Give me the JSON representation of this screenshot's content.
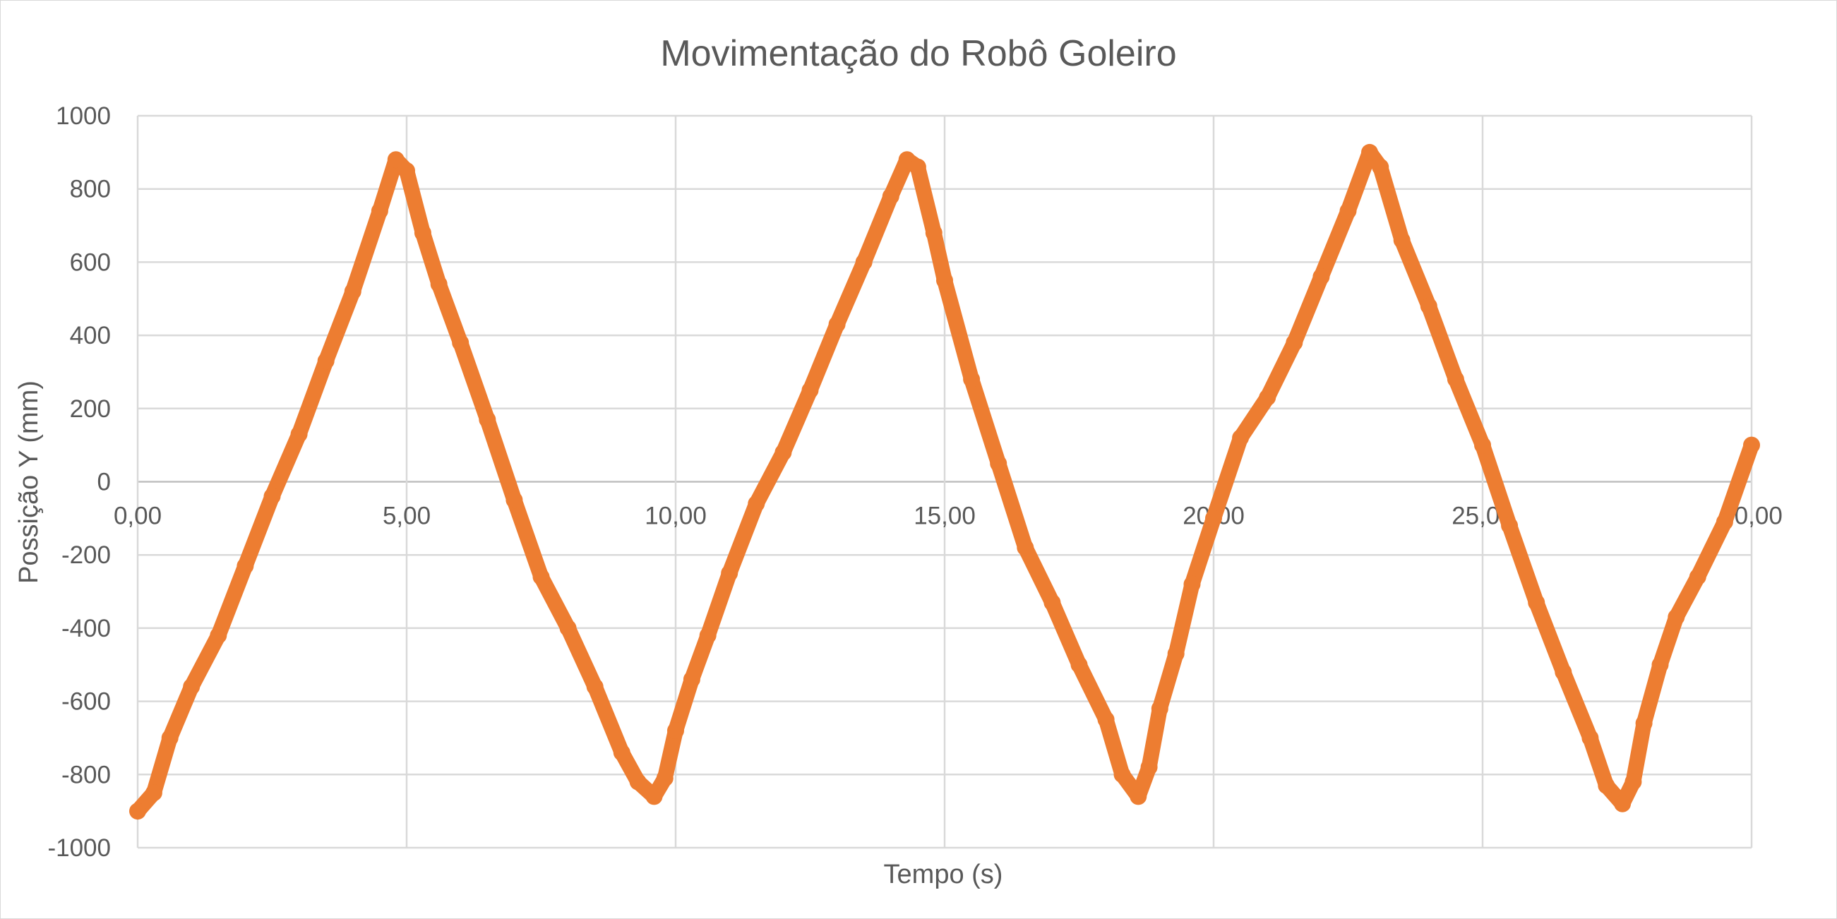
{
  "chart_data": {
    "type": "scatter",
    "title": "Movimentação do Robô Goleiro",
    "xlabel": "Tempo (s)",
    "ylabel": "Possição Y (mm)",
    "xlim": [
      0,
      30
    ],
    "ylim": [
      -1000,
      1000
    ],
    "x_ticks": [
      "0,00",
      "5,00",
      "10,00",
      "15,00",
      "20,00",
      "25,00",
      "30,00"
    ],
    "y_ticks": [
      "-1000",
      "-800",
      "-600",
      "-400",
      "-200",
      "0",
      "200",
      "400",
      "600",
      "800",
      "1000"
    ],
    "grid": true,
    "legend": "none",
    "colors": {
      "series": "#ED7D31",
      "grid": "#D9D9D9",
      "text": "#595959"
    },
    "series": [
      {
        "x": [
          0.0,
          0.3,
          0.6,
          1.0,
          1.5,
          2.0,
          2.5,
          3.0,
          3.5,
          4.0,
          4.5,
          4.8,
          5.0,
          5.3,
          5.6,
          6.0,
          6.5,
          7.0,
          7.5,
          8.0,
          8.5,
          9.0,
          9.3,
          9.6,
          9.8,
          10.0,
          10.3,
          10.6,
          11.0,
          11.5,
          12.0,
          12.5,
          13.0,
          13.5,
          14.0,
          14.3,
          14.5,
          14.8,
          15.0,
          15.5,
          16.0,
          16.5,
          17.0,
          17.5,
          18.0,
          18.3,
          18.6,
          18.8,
          19.0,
          19.3,
          19.6,
          20.0,
          20.5,
          21.0,
          21.5,
          22.0,
          22.5,
          22.9,
          23.1,
          23.5,
          24.0,
          24.5,
          25.0,
          25.5,
          26.0,
          26.5,
          27.0,
          27.3,
          27.6,
          27.8,
          28.0,
          28.3,
          28.6,
          29.0,
          29.5,
          30.0
        ],
        "y": [
          -900,
          -850,
          -700,
          -560,
          -420,
          -230,
          -40,
          130,
          330,
          520,
          740,
          880,
          850,
          680,
          540,
          380,
          170,
          -50,
          -260,
          -400,
          -560,
          -740,
          -820,
          -860,
          -810,
          -680,
          -540,
          -420,
          -250,
          -60,
          80,
          250,
          430,
          600,
          780,
          880,
          860,
          680,
          550,
          280,
          50,
          -180,
          -330,
          -500,
          -650,
          -800,
          -860,
          -780,
          -620,
          -470,
          -280,
          -100,
          120,
          230,
          380,
          560,
          740,
          900,
          860,
          660,
          480,
          280,
          100,
          -120,
          -330,
          -520,
          -700,
          -830,
          -880,
          -820,
          -660,
          -500,
          -370,
          -260,
          -110,
          100
        ]
      }
    ]
  }
}
